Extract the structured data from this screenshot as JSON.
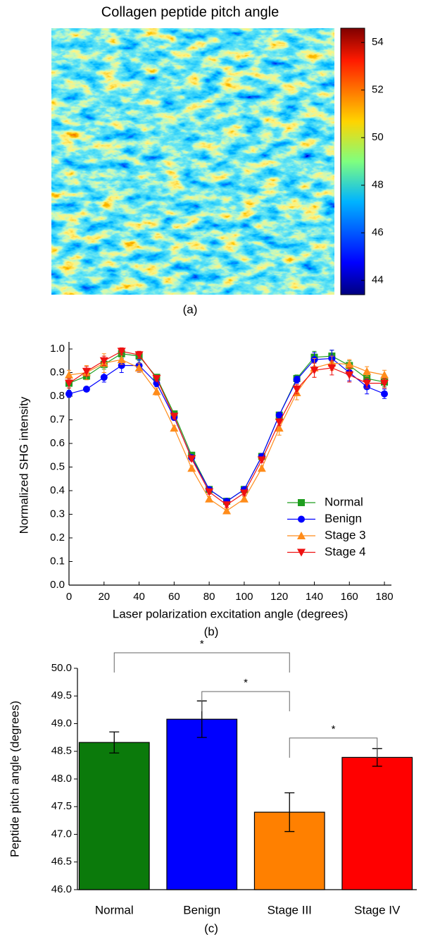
{
  "chart_data": [
    {
      "type": "heatmap",
      "title": "Collagen peptide pitch angle",
      "colormap": "jet",
      "colorbar_lim": [
        43.4,
        54.6
      ],
      "colorbar_ticks": [
        44,
        46,
        48,
        50,
        52,
        54
      ],
      "caption": "(a)"
    },
    {
      "type": "line",
      "x": [
        0,
        10,
        20,
        30,
        40,
        50,
        60,
        70,
        80,
        90,
        100,
        110,
        120,
        130,
        140,
        150,
        160,
        170,
        180
      ],
      "series": [
        {
          "name": "Normal",
          "color": "#1f9e1f",
          "marker": "square",
          "values": [
            0.855,
            0.885,
            0.935,
            0.98,
            0.97,
            0.88,
            0.725,
            0.55,
            0.405,
            0.355,
            0.405,
            0.545,
            0.72,
            0.875,
            0.965,
            0.97,
            0.93,
            0.875,
            0.86
          ],
          "errors": [
            0.02,
            0.015,
            0.02,
            0.015,
            0.02,
            0.01,
            0.01,
            0.01,
            0.01,
            0.01,
            0.01,
            0.01,
            0.01,
            0.015,
            0.025,
            0.025,
            0.02,
            0.02,
            0.02
          ]
        },
        {
          "name": "Benign",
          "color": "#0000ff",
          "marker": "circle",
          "values": [
            0.81,
            0.83,
            0.88,
            0.93,
            0.93,
            0.855,
            0.71,
            0.54,
            0.405,
            0.355,
            0.405,
            0.545,
            0.72,
            0.87,
            0.955,
            0.96,
            0.9,
            0.84,
            0.81
          ],
          "errors": [
            0.015,
            0.01,
            0.02,
            0.03,
            0.025,
            0.015,
            0.01,
            0.01,
            0.01,
            0.01,
            0.01,
            0.01,
            0.01,
            0.015,
            0.03,
            0.035,
            0.035,
            0.03,
            0.02
          ]
        },
        {
          "name": "Stage 3",
          "color": "#ff8c1a",
          "marker": "triangle-up",
          "values": [
            0.89,
            0.9,
            0.94,
            0.955,
            0.92,
            0.82,
            0.665,
            0.495,
            0.365,
            0.315,
            0.365,
            0.495,
            0.665,
            0.815,
            0.92,
            0.94,
            0.935,
            0.905,
            0.89
          ],
          "errors": [
            0.02,
            0.03,
            0.04,
            0.02,
            0.02,
            0.015,
            0.01,
            0.01,
            0.01,
            0.01,
            0.01,
            0.01,
            0.03,
            0.03,
            0.04,
            0.03,
            0.02,
            0.02,
            0.02
          ]
        },
        {
          "name": "Stage 4",
          "color": "#ee1111",
          "marker": "triangle-down",
          "values": [
            0.855,
            0.905,
            0.95,
            0.99,
            0.975,
            0.875,
            0.715,
            0.535,
            0.395,
            0.34,
            0.39,
            0.53,
            0.69,
            0.83,
            0.91,
            0.92,
            0.89,
            0.855,
            0.855
          ],
          "errors": [
            0.02,
            0.02,
            0.02,
            0.015,
            0.015,
            0.01,
            0.01,
            0.01,
            0.01,
            0.01,
            0.01,
            0.01,
            0.015,
            0.02,
            0.03,
            0.03,
            0.03,
            0.02,
            0.02
          ]
        }
      ],
      "xlim": [
        0,
        184
      ],
      "xticks": [
        0,
        20,
        40,
        60,
        80,
        100,
        120,
        140,
        160,
        180
      ],
      "ylim": [
        0,
        1.03
      ],
      "yticks": [
        {
          "value": 0,
          "label": "0.0"
        },
        0.1,
        0.2,
        0.3,
        0.4,
        0.5,
        0.6,
        0.7,
        0.8,
        0.9,
        {
          "value": 1,
          "label": "1.0"
        }
      ],
      "xlabel": "Laser polarization excitation angle (degrees)",
      "ylabel": "Normalized SHG intensity",
      "legend": "center right",
      "caption": "(b)"
    },
    {
      "type": "bar",
      "categories": [
        "Normal",
        "Benign",
        "Stage III",
        "Stage IV"
      ],
      "values": [
        48.66,
        49.08,
        47.4,
        48.39
      ],
      "errors": [
        0.19,
        0.33,
        0.35,
        0.16
      ],
      "colors": [
        "#0b7a0b",
        "#0000ff",
        "#ff8000",
        "#ff0000"
      ],
      "ylim": [
        46,
        50
      ],
      "yticks": [
        {
          "value": 46,
          "label": "46.0"
        },
        46.5,
        {
          "value": 47,
          "label": "47.0"
        },
        47.5,
        {
          "value": 48,
          "label": "48.0"
        },
        48.5,
        {
          "value": 49,
          "label": "49.0"
        },
        49.5,
        {
          "value": 50,
          "label": "50.0"
        }
      ],
      "ylabel": "Peptide pitch angle (degrees)",
      "annotations": [
        {
          "text": "*",
          "between": [
            0,
            2
          ],
          "y": 50.28
        },
        {
          "text": "*",
          "between": [
            1,
            2
          ],
          "y": 49.58
        },
        {
          "text": "*",
          "between": [
            2,
            3
          ],
          "y": 48.74
        }
      ],
      "caption": "(c)"
    }
  ]
}
